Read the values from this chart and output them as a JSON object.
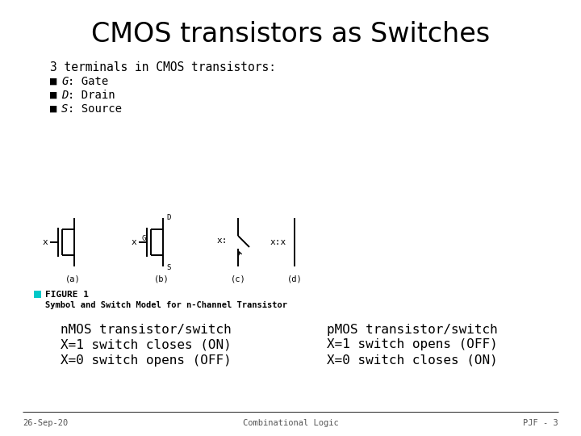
{
  "title": "CMOS transistors as Switches",
  "bg_color": "#ffffff",
  "title_fontsize": 24,
  "bullet_header": "3 terminals in CMOS transistors:",
  "bullet_g": "■ G: Gate",
  "bullet_d": "■ D: Drain",
  "bullet_s": "■ S: Source",
  "figure_label": "FIGURE 1",
  "figure_caption": "Symbol and Switch Model for n-Channel Transistor",
  "nmos_text": [
    "nMOS transistor/switch",
    "X=1 switch closes (ON)",
    "X=0 switch opens (OFF)"
  ],
  "pmos_text": [
    "pMOS transistor/switch",
    "X=1 switch opens (OFF)",
    "X=0 switch closes (ON)"
  ],
  "footer_left": "26-Sep-20",
  "footer_center": "Combinational Logic",
  "footer_right": "PJF - 3",
  "cyan_color": "#00c8c8",
  "text_color": "#000000"
}
